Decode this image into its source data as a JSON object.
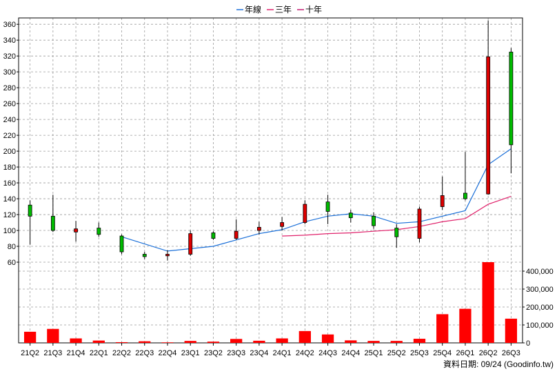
{
  "chart_data": {
    "type": "candlestick",
    "title": "",
    "legend": {
      "position": "top-center",
      "items": [
        {
          "label": "年線",
          "color": "#1a6fd8"
        },
        {
          "label": "三年",
          "color": "#e0206a"
        },
        {
          "label": "十年",
          "color": "#c21870"
        }
      ]
    },
    "price_axis": {
      "ticks": [
        60,
        80,
        100,
        120,
        140,
        160,
        180,
        200,
        220,
        240,
        260,
        280,
        300,
        320,
        340,
        360
      ],
      "range": [
        60,
        368
      ],
      "grid": true
    },
    "volume_axis": {
      "ticks": [
        0,
        100000,
        200000,
        300000,
        400000
      ],
      "tick_labels": [
        "0",
        "100,000",
        "200,000",
        "300,000",
        "400,000"
      ],
      "range": [
        0,
        450000
      ],
      "grid": true
    },
    "categories": [
      "21Q2",
      "21Q3",
      "21Q4",
      "22Q1",
      "22Q2",
      "22Q3",
      "22Q4",
      "23Q1",
      "23Q2",
      "23Q3",
      "23Q4",
      "24Q1",
      "24Q2",
      "24Q3",
      "24Q4",
      "25Q1",
      "25Q2",
      "25Q3",
      "25Q4",
      "26Q1",
      "26Q2",
      "26Q3"
    ],
    "candles": [
      {
        "open": 118,
        "close": 132,
        "high": 138,
        "low": 82
      },
      {
        "open": 100,
        "close": 118,
        "high": 145,
        "low": 98
      },
      {
        "open": 102,
        "close": 98,
        "high": 112,
        "low": 86
      },
      {
        "open": 95,
        "close": 103,
        "high": 110,
        "low": 92
      },
      {
        "open": 73,
        "close": 93,
        "high": 95,
        "low": 70
      },
      {
        "open": 67,
        "close": 70,
        "high": 73,
        "low": 64
      },
      {
        "open": 70,
        "close": 68,
        "high": 75,
        "low": 62
      },
      {
        "open": 96,
        "close": 70,
        "high": 100,
        "low": 68
      },
      {
        "open": 90,
        "close": 97,
        "high": 99,
        "low": 88
      },
      {
        "open": 99,
        "close": 90,
        "high": 114,
        "low": 88
      },
      {
        "open": 104,
        "close": 100,
        "high": 111,
        "low": 95
      },
      {
        "open": 110,
        "close": 105,
        "high": 117,
        "low": 100
      },
      {
        "open": 133,
        "close": 110,
        "high": 138,
        "low": 108
      },
      {
        "open": 124,
        "close": 136,
        "high": 145,
        "low": 108
      },
      {
        "open": 116,
        "close": 122,
        "high": 126,
        "low": 110
      },
      {
        "open": 106,
        "close": 118,
        "high": 123,
        "low": 102
      },
      {
        "open": 92,
        "close": 103,
        "high": 108,
        "low": 78
      },
      {
        "open": 127,
        "close": 90,
        "high": 130,
        "low": 85
      },
      {
        "open": 144,
        "close": 130,
        "high": 168,
        "low": 126
      },
      {
        "open": 140,
        "close": 147,
        "high": 199,
        "low": 138
      },
      {
        "open": 319,
        "close": 146,
        "high": 365,
        "low": 145
      },
      {
        "open": 208,
        "close": 325,
        "high": 330,
        "low": 172
      }
    ],
    "series": [
      {
        "name": "年線",
        "color": "#1a6fd8",
        "values": [
          null,
          null,
          null,
          null,
          92,
          null,
          74,
          null,
          80,
          null,
          96,
          101,
          111,
          118,
          121,
          118,
          109,
          111,
          null,
          125,
          183,
          203
        ]
      },
      {
        "name": "三年",
        "color": "#e0206a",
        "values": [
          null,
          null,
          null,
          null,
          null,
          null,
          null,
          null,
          null,
          null,
          null,
          93,
          94,
          96,
          97,
          99,
          101,
          105,
          111,
          115,
          133,
          143
        ]
      }
    ],
    "volumes": [
      62000,
      78000,
      25000,
      13000,
      4000,
      9000,
      3000,
      11000,
      7000,
      22000,
      12000,
      25000,
      66000,
      47000,
      14000,
      11000,
      11000,
      23000,
      160000,
      190000,
      455000,
      135000
    ],
    "footnote": "資料日期: 09/24 (Goodinfo.tw)",
    "colors": {
      "up": "#00bb00",
      "down": "#dd0000",
      "volume": "#ff0000",
      "grid": "#9a9a9a"
    }
  }
}
